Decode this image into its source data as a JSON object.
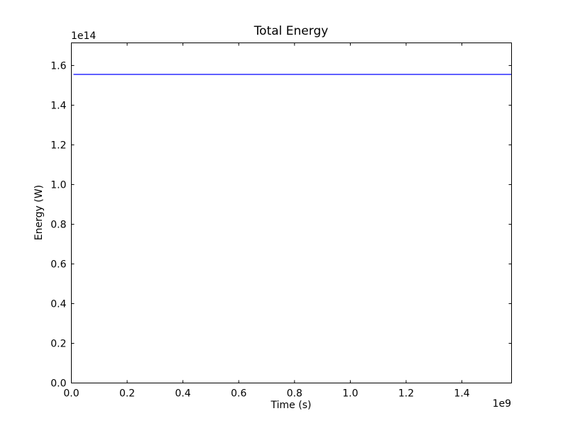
{
  "chart_data": {
    "type": "line",
    "title": "Total Energy",
    "xlabel": "Time (s)",
    "ylabel": "Energy (W)",
    "x_offset_label": "1e9",
    "y_offset_label": "1e14",
    "xlim": [
      0,
      1578000000.0
    ],
    "ylim": [
      0,
      171400000000000.0
    ],
    "xticks": [
      0.0,
      0.2,
      0.4,
      0.6,
      0.8,
      1.0,
      1.2,
      1.4
    ],
    "xtick_labels": [
      "0.0",
      "0.2",
      "0.4",
      "0.6",
      "0.8",
      "1.0",
      "1.2",
      "1.4"
    ],
    "yticks": [
      0.0,
      0.2,
      0.4,
      0.6,
      0.8,
      1.0,
      1.2,
      1.4,
      1.6
    ],
    "ytick_labels": [
      "0.0",
      "0.2",
      "0.4",
      "0.6",
      "0.8",
      "1.0",
      "1.2",
      "1.4",
      "1.6"
    ],
    "grid": false,
    "series": [
      {
        "color": "#0000ff",
        "x": [
          7600000.0,
          1578000000.0
        ],
        "y": [
          155500000000000.0,
          155500000000000.0
        ]
      }
    ]
  }
}
